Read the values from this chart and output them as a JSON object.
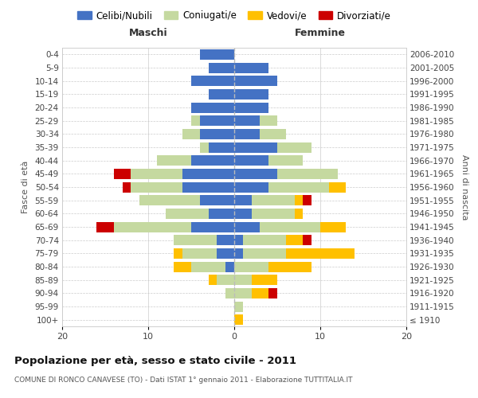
{
  "age_groups": [
    "100+",
    "95-99",
    "90-94",
    "85-89",
    "80-84",
    "75-79",
    "70-74",
    "65-69",
    "60-64",
    "55-59",
    "50-54",
    "45-49",
    "40-44",
    "35-39",
    "30-34",
    "25-29",
    "20-24",
    "15-19",
    "10-14",
    "5-9",
    "0-4"
  ],
  "birth_years": [
    "≤ 1910",
    "1911-1915",
    "1916-1920",
    "1921-1925",
    "1926-1930",
    "1931-1935",
    "1936-1940",
    "1941-1945",
    "1946-1950",
    "1951-1955",
    "1956-1960",
    "1961-1965",
    "1966-1970",
    "1971-1975",
    "1976-1980",
    "1981-1985",
    "1986-1990",
    "1991-1995",
    "1996-2000",
    "2001-2005",
    "2006-2010"
  ],
  "maschi": {
    "celibi": [
      0,
      0,
      0,
      0,
      1,
      2,
      2,
      5,
      3,
      4,
      6,
      6,
      5,
      3,
      4,
      4,
      5,
      3,
      5,
      3,
      4
    ],
    "coniugati": [
      0,
      0,
      1,
      2,
      4,
      4,
      5,
      9,
      5,
      7,
      6,
      6,
      4,
      1,
      2,
      1,
      0,
      0,
      0,
      0,
      0
    ],
    "vedovi": [
      0,
      0,
      0,
      1,
      2,
      1,
      0,
      0,
      0,
      0,
      0,
      0,
      0,
      0,
      0,
      0,
      0,
      0,
      0,
      0,
      0
    ],
    "divorziati": [
      0,
      0,
      0,
      0,
      0,
      0,
      0,
      2,
      0,
      0,
      1,
      2,
      0,
      0,
      0,
      0,
      0,
      0,
      0,
      0,
      0
    ]
  },
  "femmine": {
    "nubili": [
      0,
      0,
      0,
      0,
      0,
      1,
      1,
      3,
      2,
      2,
      4,
      5,
      4,
      5,
      3,
      3,
      4,
      4,
      5,
      4,
      0
    ],
    "coniugate": [
      0,
      1,
      2,
      2,
      4,
      5,
      5,
      7,
      5,
      5,
      7,
      7,
      4,
      4,
      3,
      2,
      0,
      0,
      0,
      0,
      0
    ],
    "vedove": [
      1,
      0,
      2,
      3,
      5,
      8,
      2,
      3,
      1,
      1,
      2,
      0,
      0,
      0,
      0,
      0,
      0,
      0,
      0,
      0,
      0
    ],
    "divorziate": [
      0,
      0,
      1,
      0,
      0,
      0,
      1,
      0,
      0,
      1,
      0,
      0,
      0,
      0,
      0,
      0,
      0,
      0,
      0,
      0,
      0
    ]
  },
  "colors": {
    "celibi_nubili": "#4472c4",
    "coniugati": "#c5d9a0",
    "vedovi": "#ffc000",
    "divorziati": "#cc0000"
  },
  "title": "Popolazione per età, sesso e stato civile - 2011",
  "subtitle": "COMUNE DI RONCO CANAVESE (TO) - Dati ISTAT 1° gennaio 2011 - Elaborazione TUTTITALIA.IT",
  "xlabel_left": "Maschi",
  "xlabel_right": "Femmine",
  "ylabel_left": "Fasce di età",
  "ylabel_right": "Anni di nascita",
  "xlim": 20,
  "legend_labels": [
    "Celibi/Nubili",
    "Coniugati/e",
    "Vedovi/e",
    "Divorziati/e"
  ],
  "background_color": "#ffffff",
  "grid_color": "#cccccc"
}
